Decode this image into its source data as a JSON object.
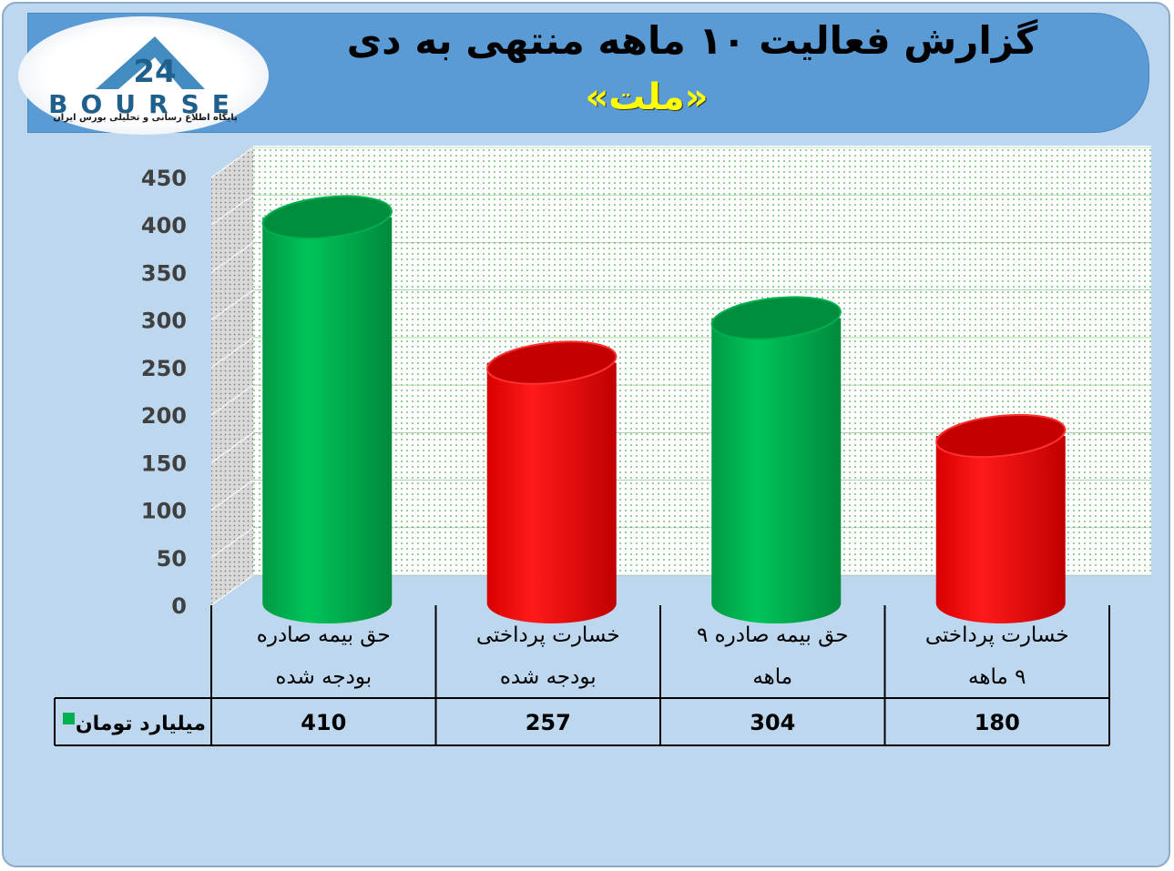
{
  "header": {
    "title": "گزارش فعالیت ۱۰ ماهه منتهی به دی",
    "subtitle": "«ملت»"
  },
  "logo": {
    "name": "BOURSE",
    "tagline": "پایگاه اطلاع رسانی و تحلیلی بورس ایران"
  },
  "chart_data": {
    "type": "bar",
    "ylim": [
      0,
      450
    ],
    "yticks": [
      0,
      50,
      100,
      150,
      200,
      250,
      300,
      350,
      400,
      450
    ],
    "categories": [
      [
        "حق بیمه صادره",
        "بودجه شده"
      ],
      [
        "خسارت پرداختی",
        "بودجه شده"
      ],
      [
        "حق بیمه صادره ۹",
        "ماهه"
      ],
      [
        "خسارت پرداختی",
        "۹ ماهه"
      ]
    ],
    "series": [
      {
        "name": "میلیارد تومان",
        "values": [
          410,
          257,
          304,
          180
        ]
      }
    ],
    "bar_colors": [
      "#00b050",
      "#ff0000",
      "#00b050",
      "#ff0000"
    ],
    "grid": true,
    "legend": "bottom-left (data table)"
  },
  "colors": {
    "green": "#00b050",
    "red": "#ff0000",
    "background": "#bdd7ee",
    "banner": "#5b9bd5",
    "subtitle": "#ffff00"
  }
}
